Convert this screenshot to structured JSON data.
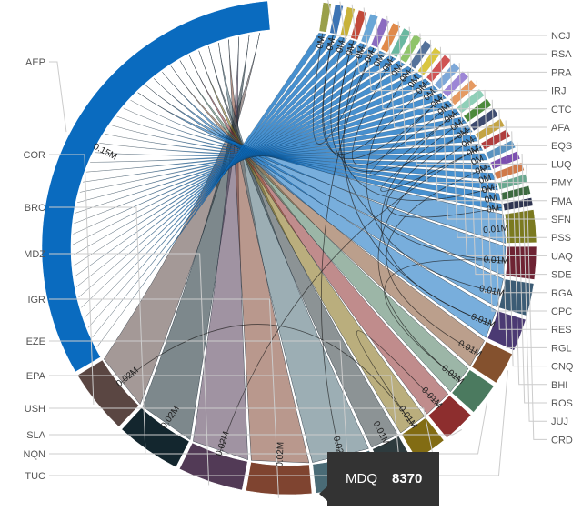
{
  "chart_data": {
    "type": "chord",
    "title": "",
    "value_unit": "M",
    "left_nodes": [
      {
        "name": "AEP",
        "value_label": "0.15M",
        "color": "#0a6bbf"
      },
      {
        "name": "COR",
        "value_label": "0.02M",
        "color": "#5a4642"
      },
      {
        "name": "BRC",
        "value_label": "0.02M",
        "color": "#13262e"
      },
      {
        "name": "MDZ",
        "value_label": "0.02M",
        "color": "#523a56"
      },
      {
        "name": "IGR",
        "value_label": "0.02M",
        "color": "#7f4430"
      },
      {
        "name": "EZE",
        "value_label": "0.02M",
        "color": "#4a6b76"
      },
      {
        "name": "EPA",
        "value_label": "0.01M",
        "color": "#2e3b3e"
      },
      {
        "name": "USH",
        "value_label": "0.01M",
        "color": "#826c13"
      },
      {
        "name": "SLA",
        "value_label": "0.01M",
        "color": "#8d2e2e"
      },
      {
        "name": "NQN",
        "value_label": "0.01M",
        "color": "#4b7a5f"
      },
      {
        "name": "TUC",
        "value_label": "0.01M",
        "color": "#84512e"
      }
    ],
    "bottom_nodes": [
      {
        "name": "",
        "value_label": "0.01M",
        "color": "#4b3a73"
      },
      {
        "name": "",
        "value_label": "0.01M",
        "color": "#3c5c75"
      },
      {
        "name": "MDQ",
        "value_label": "0.01M",
        "color": "#6e2333"
      },
      {
        "name": "",
        "value_label": "0.01M",
        "color": "#7b7a20"
      }
    ],
    "right_nodes": [
      {
        "name": "NCJ",
        "value_label": "0M",
        "color": "#9aa04a"
      },
      {
        "name": "RSA",
        "value_label": "0M",
        "color": "#3d74b4"
      },
      {
        "name": "PRA",
        "value_label": "0M",
        "color": "#c8b23a"
      },
      {
        "name": "IRJ",
        "value_label": "0M",
        "color": "#c24a3a"
      },
      {
        "name": "CTC",
        "value_label": "0M",
        "color": "#6aa6d6"
      },
      {
        "name": "AFA",
        "value_label": "0M",
        "color": "#8b6bc0"
      },
      {
        "name": "EQS",
        "value_label": "0M",
        "color": "#e08a4a"
      },
      {
        "name": "LUQ",
        "value_label": "0M",
        "color": "#6ab8a0"
      },
      {
        "name": "PMY",
        "value_label": "0M",
        "color": "#8fc46a"
      },
      {
        "name": "FMA",
        "value_label": "0M",
        "color": "#55729a"
      },
      {
        "name": "SFN",
        "value_label": "0M",
        "color": "#d9c640"
      },
      {
        "name": "PSS",
        "value_label": "0M",
        "color": "#d05454"
      },
      {
        "name": "UAQ",
        "value_label": "0M",
        "color": "#7ea8d8"
      },
      {
        "name": "SDE",
        "value_label": "0M",
        "color": "#9d86d6"
      },
      {
        "name": "RGA",
        "value_label": "0M",
        "color": "#e59a62"
      },
      {
        "name": "CPC",
        "value_label": "0M",
        "color": "#8fcfb8"
      },
      {
        "name": "RES",
        "value_label": "0M",
        "color": "#4c8a3c"
      },
      {
        "name": "RGL",
        "value_label": "0M",
        "color": "#3d4a6e"
      },
      {
        "name": "CNQ",
        "value_label": "0M",
        "color": "#c4a444"
      },
      {
        "name": "BHI",
        "value_label": "0M",
        "color": "#b03d3d"
      },
      {
        "name": "ROS",
        "value_label": "0M",
        "color": "#5b93c0"
      },
      {
        "name": "JUJ",
        "value_label": "0M",
        "color": "#7c4fb0"
      },
      {
        "name": "CRD",
        "value_label": "0M",
        "color": "#d07a4a"
      },
      {
        "name": "",
        "value_label": "0M",
        "color": "#6aa890"
      },
      {
        "name": "",
        "value_label": "0M",
        "color": "#3d6a40"
      },
      {
        "name": "",
        "value_label": "0M",
        "color": "#2e3450"
      }
    ],
    "tooltip": {
      "label": "MDQ",
      "value": "8370"
    }
  }
}
